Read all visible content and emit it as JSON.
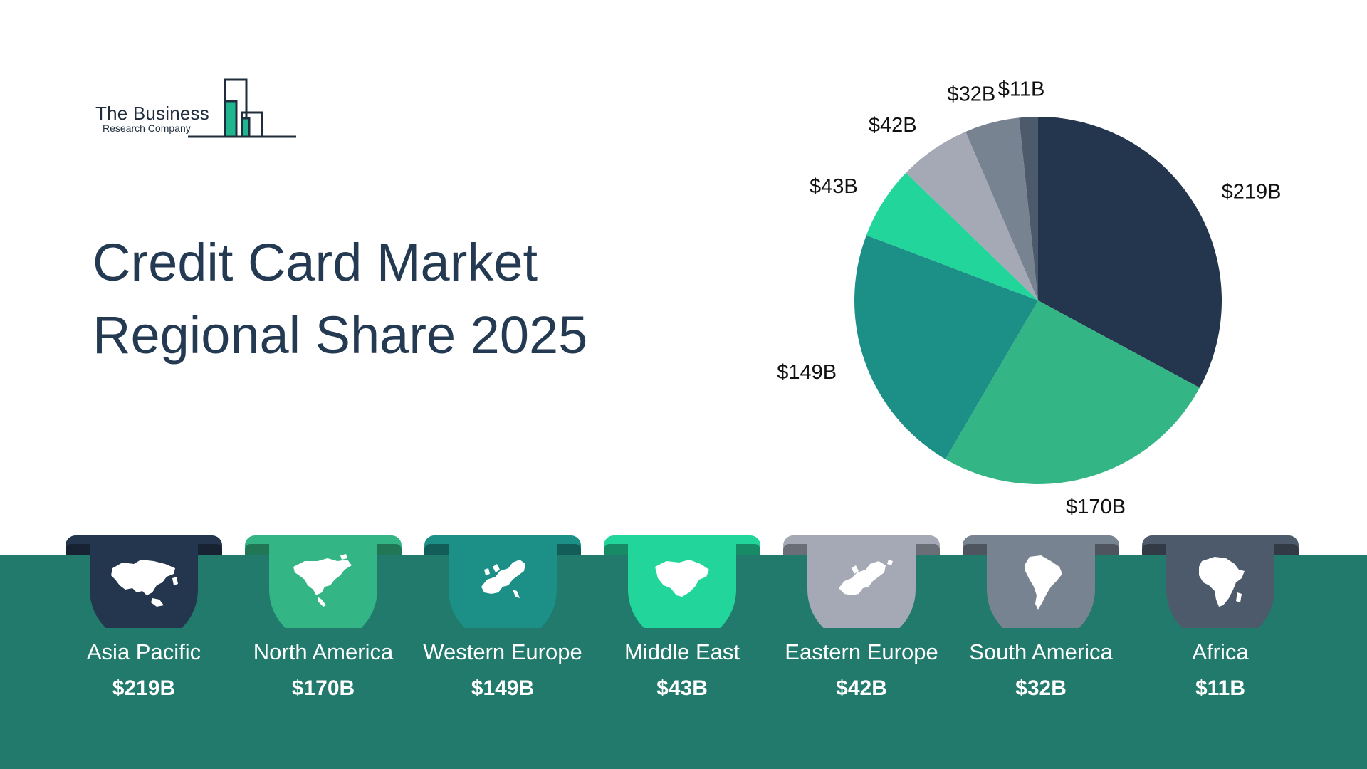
{
  "logo": {
    "line1": "The Business",
    "line2": "Research Company",
    "accent_color": "#1fb58f",
    "ink_color": "#1f2d3d"
  },
  "title": {
    "line1": "Credit Card Market",
    "line2": "Regional Share 2025"
  },
  "chart_data": {
    "type": "pie",
    "title": "Credit Card Market Regional Share 2025",
    "unit": "$B",
    "categories": [
      "Asia Pacific",
      "North America",
      "Western Europe",
      "Middle East",
      "Eastern Europe",
      "South America",
      "Africa"
    ],
    "values": [
      219,
      170,
      149,
      43,
      42,
      32,
      11
    ],
    "labels": [
      "$219B",
      "$170B",
      "$149B",
      "$43B",
      "$42B",
      "$32B",
      "$11B"
    ],
    "colors": [
      "#24364d",
      "#34b585",
      "#1c8f86",
      "#22d69b",
      "#a4a9b5",
      "#788391",
      "#4d5a6b"
    ],
    "start": "12 o'clock",
    "direction": "clockwise",
    "legend": "bottom"
  },
  "regions": [
    {
      "name": "Asia Pacific",
      "value": "$219B",
      "color": "#24364d",
      "icon": "asia-map-icon"
    },
    {
      "name": "North America",
      "value": "$170B",
      "color": "#34b585",
      "icon": "north-america-map-icon"
    },
    {
      "name": "Western Europe",
      "value": "$149B",
      "color": "#1c8f86",
      "icon": "western-europe-map-icon"
    },
    {
      "name": "Middle East",
      "value": "$43B",
      "color": "#22d69b",
      "icon": "middle-east-map-icon"
    },
    {
      "name": "Eastern Europe",
      "value": "$42B",
      "color": "#a4a9b5",
      "icon": "eastern-europe-map-icon"
    },
    {
      "name": "South America",
      "value": "$32B",
      "color": "#788391",
      "icon": "south-america-map-icon"
    },
    {
      "name": "Africa",
      "value": "$11B",
      "color": "#4d5a6b",
      "icon": "africa-map-icon"
    }
  ],
  "band_color": "#217a6b"
}
